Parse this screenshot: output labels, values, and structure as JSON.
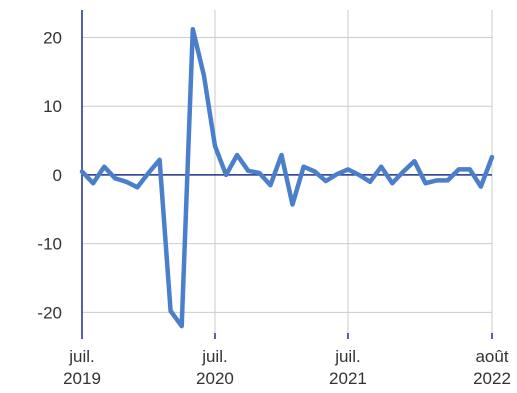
{
  "chart_data": {
    "type": "line",
    "title": "",
    "xlabel": "",
    "ylabel": "",
    "ylim": [
      -23,
      24
    ],
    "grid": true,
    "y_ticks": [
      20,
      10,
      0,
      -10,
      -20
    ],
    "y_tick_labels": [
      "20",
      "10",
      "0",
      "-10",
      "-20"
    ],
    "x_ticks": [
      {
        "date": "2019-07",
        "line1": "juil.",
        "line2": "2019"
      },
      {
        "date": "2020-07",
        "line1": "juil.",
        "line2": "2020"
      },
      {
        "date": "2021-07",
        "line1": "juil.",
        "line2": "2021"
      },
      {
        "date": "2022-08",
        "line1": "août",
        "line2": "2022"
      }
    ],
    "colors": {
      "series": "#4a7fcb",
      "zero_line": "#1f2f8a",
      "grid": "#cccccc",
      "axis": "#1f2f8a"
    },
    "series": [
      {
        "x": [
          "2019-07",
          "2019-08",
          "2019-09",
          "2019-10",
          "2019-11",
          "2019-12",
          "2020-01",
          "2020-02",
          "2020-03",
          "2020-04",
          "2020-05",
          "2020-06",
          "2020-07",
          "2020-08",
          "2020-09",
          "2020-10",
          "2020-11",
          "2020-12",
          "2021-01",
          "2021-02",
          "2021-03",
          "2021-04",
          "2021-05",
          "2021-06",
          "2021-07",
          "2021-08",
          "2021-09",
          "2021-10",
          "2021-11",
          "2021-12",
          "2022-01",
          "2022-02",
          "2022-03",
          "2022-04",
          "2022-05",
          "2022-06",
          "2022-07",
          "2022-08"
        ],
        "values": [
          0.5,
          -1.2,
          1.2,
          -0.5,
          -1.0,
          -1.8,
          0.3,
          2.2,
          -19.8,
          -22.0,
          21.2,
          14.5,
          4.2,
          0.0,
          2.9,
          0.6,
          0.3,
          -1.5,
          2.9,
          -4.3,
          1.2,
          0.5,
          -0.9,
          0.1,
          0.8,
          0.0,
          -1.0,
          1.2,
          -1.2,
          0.5,
          2.0,
          -1.2,
          -0.8,
          -0.8,
          0.8,
          0.8,
          -1.7,
          2.6
        ]
      }
    ]
  }
}
